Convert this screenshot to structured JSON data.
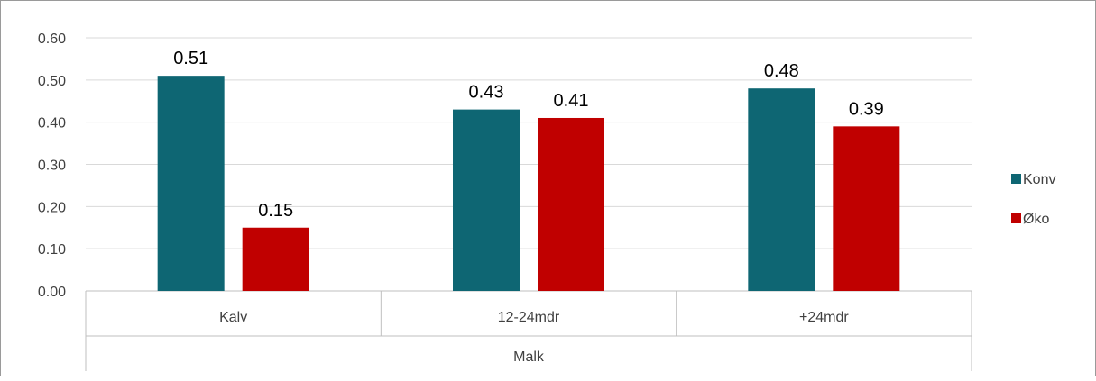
{
  "chart_data": {
    "type": "bar",
    "group_label": "Malk",
    "categories": [
      "Kalv",
      "12-24mdr",
      "+24mdr"
    ],
    "series": [
      {
        "name": "Konv",
        "values": [
          0.51,
          0.43,
          0.48
        ],
        "labels": [
          "0.51",
          "0.43",
          "0.48"
        ],
        "color": "#0e6673"
      },
      {
        "name": "Øko",
        "values": [
          0.15,
          0.41,
          0.39
        ],
        "labels": [
          "0.15",
          "0.41",
          "0.39"
        ],
        "color": "#c00000"
      }
    ],
    "ylim": [
      0,
      0.6
    ],
    "yticks": [
      0,
      0.1,
      0.2,
      0.3,
      0.4,
      0.5,
      0.6
    ],
    "ytick_labels": [
      "0.00",
      "0.10",
      "0.20",
      "0.30",
      "0.40",
      "0.50",
      "0.60"
    ],
    "grid": true,
    "legend_position": "right",
    "colors": {
      "gridline": "#d9d9d9",
      "axis": "#bfbfbf",
      "border": "#9a9a9a",
      "text": "#404040",
      "label": "#000000"
    }
  }
}
